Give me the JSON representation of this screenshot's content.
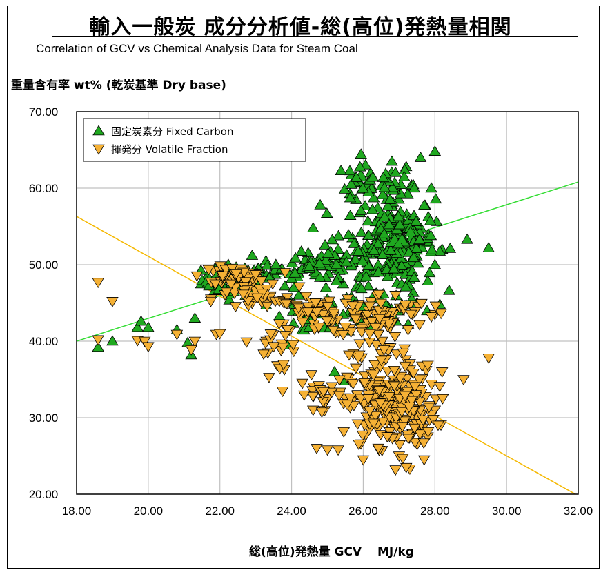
{
  "chart_data": {
    "type": "scatter",
    "title": "輸入一般炭 成分分析値‐総(高位)発熱量相関",
    "subtitle": "Correlation of GCV vs Chemical Analysis Data for Steam Coal",
    "ylabel": "重量含有率 wt% (乾炭基準 Dry base)",
    "xlabel": "総(高位)発熱量 GCV　 MJ/kg",
    "xlim": [
      18,
      32
    ],
    "ylim": [
      20,
      70
    ],
    "x_ticks": [
      "18.00",
      "20.00",
      "22.00",
      "24.00",
      "26.00",
      "28.00",
      "30.00",
      "32.00"
    ],
    "y_ticks": [
      "20.00",
      "30.00",
      "40.00",
      "50.00",
      "60.00",
      "70.00"
    ],
    "grid": true,
    "legend_position": "top-left",
    "series": [
      {
        "name": "固定炭素分 Fixed Carbon",
        "marker": "triangle-up",
        "color": "#1fa81f",
        "trendline": {
          "x": [
            18,
            32
          ],
          "y": [
            40.0,
            60.8
          ],
          "color": "#33dd33"
        },
        "clusters": [
          {
            "cx": 22.4,
            "cy": 48.0,
            "sx": 0.45,
            "sy": 1.0,
            "n": 70
          },
          {
            "cx": 23.6,
            "cy": 49.0,
            "sx": 0.5,
            "sy": 0.6,
            "n": 20
          },
          {
            "cx": 24.8,
            "cy": 50.0,
            "sx": 0.45,
            "sy": 0.8,
            "n": 30
          },
          {
            "cx": 26.9,
            "cy": 53.0,
            "sx": 0.55,
            "sy": 3.2,
            "n": 240
          },
          {
            "cx": 26.2,
            "cy": 60.5,
            "sx": 0.6,
            "sy": 1.2,
            "n": 45
          },
          {
            "cx": 25.4,
            "cy": 49.0,
            "sx": 0.6,
            "sy": 2.0,
            "n": 40
          },
          {
            "cx": 25.0,
            "cy": 43.5,
            "sx": 0.6,
            "sy": 1.2,
            "n": 40
          },
          {
            "cx": 27.0,
            "cy": 43.6,
            "sx": 0.6,
            "sy": 0.8,
            "n": 20
          }
        ],
        "points": [
          [
            18.6,
            39.2
          ],
          [
            19.0,
            40.0
          ],
          [
            19.7,
            41.8
          ],
          [
            19.8,
            42.6
          ],
          [
            20.0,
            41.8
          ],
          [
            20.8,
            41.5
          ],
          [
            21.2,
            38.2
          ],
          [
            21.3,
            43.0
          ],
          [
            21.1,
            39.8
          ],
          [
            22.9,
            51.2
          ],
          [
            24.6,
            54.8
          ],
          [
            24.8,
            57.8
          ],
          [
            25.8,
            58.5
          ],
          [
            28.0,
            64.8
          ],
          [
            28.9,
            53.3
          ],
          [
            29.5,
            52.2
          ],
          [
            27.9,
            60.0
          ],
          [
            27.6,
            64.0
          ],
          [
            28.2,
            52.0
          ],
          [
            28.0,
            50.0
          ],
          [
            24.0,
            45.0
          ],
          [
            24.2,
            46.0
          ],
          [
            23.9,
            39.5
          ],
          [
            24.3,
            41.5
          ],
          [
            25.2,
            36.0
          ],
          [
            25.5,
            34.8
          ],
          [
            24.5,
            44.0
          ],
          [
            26.0,
            44.5
          ],
          [
            26.5,
            45.5
          ],
          [
            27.5,
            45.0
          ],
          [
            25.0,
            45.5
          ],
          [
            26.8,
            63.5
          ],
          [
            27.2,
            62.8
          ],
          [
            25.7,
            53.5
          ],
          [
            25.3,
            52.0
          ]
        ]
      },
      {
        "name": "揮発分 Volatile Fraction",
        "marker": "triangle-down",
        "color": "#f5b135",
        "trendline": {
          "x": [
            18,
            32
          ],
          "y": [
            56.3,
            19.8
          ],
          "color": "#f5b800"
        },
        "clusters": [
          {
            "cx": 22.4,
            "cy": 48.5,
            "sx": 0.45,
            "sy": 0.6,
            "n": 60
          },
          {
            "cx": 23.0,
            "cy": 45.5,
            "sx": 0.6,
            "sy": 0.8,
            "n": 35
          },
          {
            "cx": 24.8,
            "cy": 43.5,
            "sx": 0.6,
            "sy": 1.3,
            "n": 50
          },
          {
            "cx": 26.5,
            "cy": 43.5,
            "sx": 0.7,
            "sy": 1.4,
            "n": 70
          },
          {
            "cx": 26.8,
            "cy": 31.5,
            "sx": 0.6,
            "sy": 2.6,
            "n": 240
          },
          {
            "cx": 24.8,
            "cy": 33.0,
            "sx": 0.35,
            "sy": 1.2,
            "n": 25
          },
          {
            "cx": 23.6,
            "cy": 40.0,
            "sx": 0.5,
            "sy": 1.5,
            "n": 20
          },
          {
            "cx": 26.3,
            "cy": 38.5,
            "sx": 0.5,
            "sy": 1.5,
            "n": 30
          }
        ],
        "points": [
          [
            18.6,
            47.7
          ],
          [
            19.0,
            45.2
          ],
          [
            18.6,
            40.2
          ],
          [
            19.7,
            40.1
          ],
          [
            19.9,
            40.0
          ],
          [
            20.0,
            39.3
          ],
          [
            20.8,
            40.9
          ],
          [
            21.3,
            40.0
          ],
          [
            21.2,
            38.9
          ],
          [
            21.9,
            40.9
          ],
          [
            22.0,
            41.0
          ],
          [
            23.3,
            40.0
          ],
          [
            23.6,
            36.8
          ],
          [
            23.8,
            36.3
          ],
          [
            24.7,
            26.0
          ],
          [
            25.0,
            25.8
          ],
          [
            25.3,
            25.8
          ],
          [
            26.9,
            23.2
          ],
          [
            27.3,
            23.3
          ],
          [
            27.2,
            23.5
          ],
          [
            27.7,
            24.5
          ],
          [
            28.2,
            36.0
          ],
          [
            28.8,
            35.0
          ],
          [
            29.5,
            37.8
          ],
          [
            28.0,
            31.0
          ],
          [
            27.8,
            27.5
          ],
          [
            24.3,
            34.5
          ],
          [
            26.4,
            28.5
          ],
          [
            24.6,
            31.0
          ],
          [
            28.0,
            43.5
          ],
          [
            27.9,
            43.2
          ],
          [
            26.0,
            24.5
          ],
          [
            27.0,
            25.0
          ]
        ]
      }
    ]
  }
}
